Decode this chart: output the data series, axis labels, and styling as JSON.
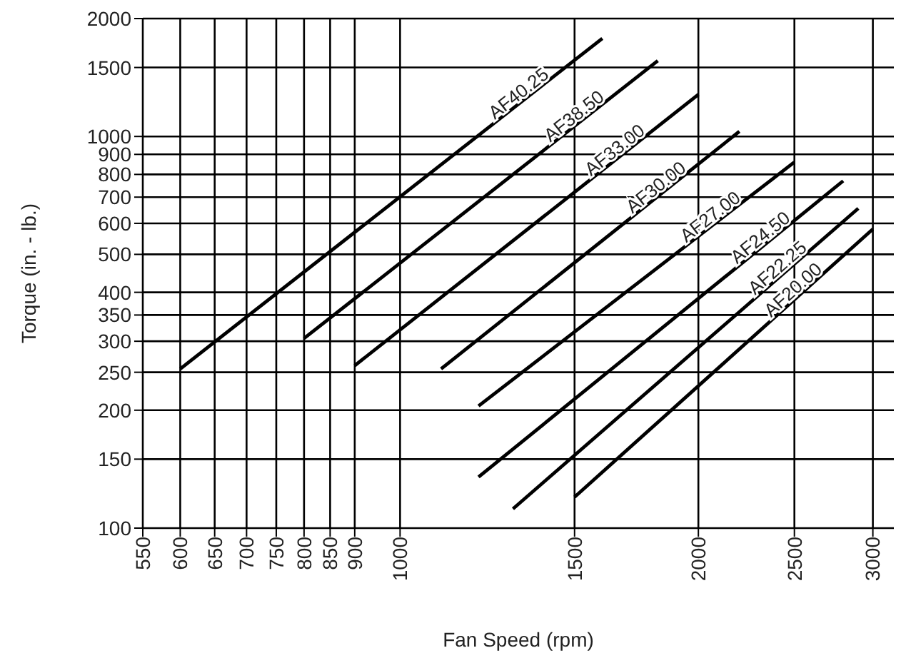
{
  "chart_data": {
    "type": "line",
    "xlabel": "Fan Speed (rpm)",
    "ylabel": "Torque (in. - lb.)",
    "log": "xy",
    "grid": true,
    "legend": false,
    "marker": "none",
    "line_style": "solid",
    "xlim": [
      550,
      3150
    ],
    "xticks": [
      550,
      600,
      650,
      700,
      750,
      800,
      850,
      900,
      1000,
      1500,
      2000,
      2500,
      3000
    ],
    "ylim": [
      100,
      2000
    ],
    "yticks": [
      100,
      150,
      200,
      250,
      300,
      350,
      400,
      500,
      600,
      700,
      800,
      900,
      1000,
      1500,
      2000
    ],
    "series": [
      {
        "name": "AF40.25",
        "color": "#000000",
        "x": [
          600,
          1600
        ],
        "values": [
          255,
          1780
        ]
      },
      {
        "name": "AF38.50",
        "color": "#000000",
        "x": [
          800,
          1820
        ],
        "values": [
          305,
          1560
        ]
      },
      {
        "name": "AF33.00",
        "color": "#000000",
        "x": [
          900,
          2000
        ],
        "values": [
          260,
          1280
        ]
      },
      {
        "name": "AF30.00",
        "color": "#000000",
        "x": [
          1100,
          2200
        ],
        "values": [
          255,
          1030
        ]
      },
      {
        "name": "AF27.00",
        "color": "#000000",
        "x": [
          1200,
          2500
        ],
        "values": [
          205,
          860
        ]
      },
      {
        "name": "AF24.50",
        "color": "#000000",
        "x": [
          1200,
          2800
        ],
        "values": [
          135,
          770
        ]
      },
      {
        "name": "AF22.25",
        "color": "#000000",
        "x": [
          1300,
          2900
        ],
        "values": [
          112,
          655
        ]
      },
      {
        "name": "AF20.00",
        "color": "#000000",
        "x": [
          1500,
          3000
        ],
        "values": [
          120,
          580
        ]
      }
    ]
  }
}
